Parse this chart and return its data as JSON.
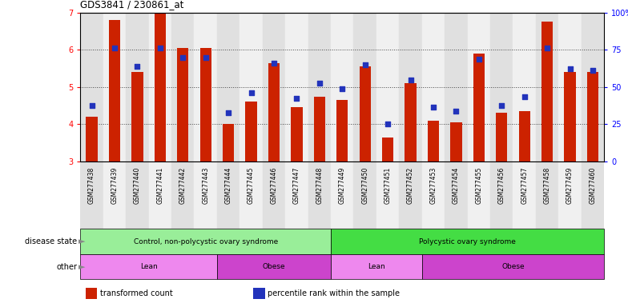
{
  "title": "GDS3841 / 230861_at",
  "samples": [
    "GSM277438",
    "GSM277439",
    "GSM277440",
    "GSM277441",
    "GSM277442",
    "GSM277443",
    "GSM277444",
    "GSM277445",
    "GSM277446",
    "GSM277447",
    "GSM277448",
    "GSM277449",
    "GSM277450",
    "GSM277451",
    "GSM277452",
    "GSM277453",
    "GSM277454",
    "GSM277455",
    "GSM277456",
    "GSM277457",
    "GSM277458",
    "GSM277459",
    "GSM277460"
  ],
  "bar_values": [
    4.2,
    6.8,
    5.4,
    7.0,
    6.05,
    6.05,
    4.0,
    4.6,
    5.65,
    4.45,
    4.75,
    4.65,
    5.55,
    3.65,
    5.1,
    4.1,
    4.05,
    5.9,
    4.3,
    4.35,
    6.75,
    5.4,
    5.4
  ],
  "dot_values": [
    4.5,
    6.05,
    5.55,
    6.05,
    5.8,
    5.8,
    4.3,
    4.85,
    5.65,
    4.7,
    5.1,
    4.95,
    5.6,
    4.0,
    5.2,
    4.45,
    4.35,
    5.75,
    4.5,
    4.75,
    6.05,
    5.5,
    5.45
  ],
  "bar_color": "#CC2200",
  "dot_color": "#2233BB",
  "ylim": [
    3,
    7
  ],
  "yticks_left": [
    3,
    4,
    5,
    6,
    7
  ],
  "right_ytick_pcts": [
    0,
    25,
    50,
    75,
    100
  ],
  "right_yticklabels": [
    "0",
    "25",
    "50",
    "75",
    "100%"
  ],
  "col_bg_even": "#e0e0e0",
  "col_bg_odd": "#f0f0f0",
  "disease_state_groups": [
    {
      "label": "Control, non-polycystic ovary syndrome",
      "start": 0,
      "end": 11,
      "color": "#99EE99"
    },
    {
      "label": "Polycystic ovary syndrome",
      "start": 11,
      "end": 23,
      "color": "#44DD44"
    }
  ],
  "other_groups": [
    {
      "label": "Lean",
      "start": 0,
      "end": 6,
      "color": "#EE88EE"
    },
    {
      "label": "Obese",
      "start": 6,
      "end": 11,
      "color": "#CC44CC"
    },
    {
      "label": "Lean",
      "start": 11,
      "end": 15,
      "color": "#EE88EE"
    },
    {
      "label": "Obese",
      "start": 15,
      "end": 23,
      "color": "#CC44CC"
    }
  ],
  "legend_items": [
    {
      "label": "transformed count",
      "color": "#CC2200"
    },
    {
      "label": "percentile rank within the sample",
      "color": "#2233BB"
    }
  ],
  "disease_row_label": "disease state",
  "other_row_label": "other"
}
